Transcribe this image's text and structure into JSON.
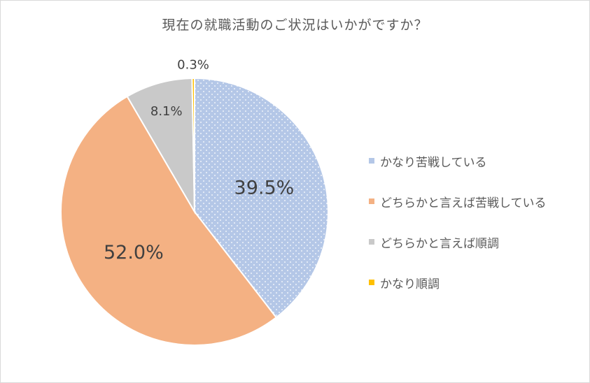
{
  "chart_data": {
    "type": "pie",
    "title": "現在の就職活動のご状況はいかがですか？",
    "categories": [
      "かなり苦戦している",
      "どちらかと言えば苦戦している",
      "どちらかと言えば順調",
      "かなり順調"
    ],
    "values": [
      39.5,
      52.0,
      8.1,
      0.3
    ],
    "data_labels": [
      "39.5%",
      "52.0%",
      "8.1%",
      "0.3%"
    ],
    "colors": [
      "#b4c7e7",
      "#f4b183",
      "#c9c9c9",
      "#ffc000"
    ],
    "legend_placement": "right"
  }
}
